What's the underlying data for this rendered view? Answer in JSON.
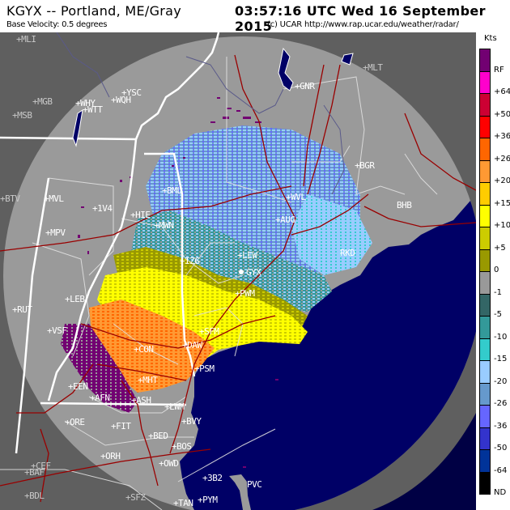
{
  "header": {
    "station": "KGYX -- Portland, ME/Gray",
    "product": "Base Velocity: 0.5 degrees",
    "timestamp": "03:57:16 UTC Wed 16 September 2015",
    "credit": "(c) UCAR  http://www.rap.ucar.edu/weather/radar/"
  },
  "legend": {
    "title": "Kts",
    "entries": [
      {
        "label": "RF",
        "color": "#720072"
      },
      {
        "label": "+64",
        "color": "#ff00cc"
      },
      {
        "label": "+50",
        "color": "#cc0033"
      },
      {
        "label": "+36",
        "color": "#ff0000"
      },
      {
        "label": "+26",
        "color": "#ff6600"
      },
      {
        "label": "+20",
        "color": "#ff9933"
      },
      {
        "label": "+15",
        "color": "#ffcc00"
      },
      {
        "label": "+10",
        "color": "#ffff00"
      },
      {
        "label": "+5",
        "color": "#cccc00"
      },
      {
        "label": "0",
        "color": "#999900"
      },
      {
        "label": "-1",
        "color": "#999999"
      },
      {
        "label": "-5",
        "color": "#336666"
      },
      {
        "label": "-10",
        "color": "#339999"
      },
      {
        "label": "-15",
        "color": "#33cccc"
      },
      {
        "label": "-20",
        "color": "#99ccff"
      },
      {
        "label": "-26",
        "color": "#6699cc"
      },
      {
        "label": "-36",
        "color": "#6666ff"
      },
      {
        "label": "-50",
        "color": "#3333cc"
      },
      {
        "label": "-64",
        "color": "#003399"
      },
      {
        "label": "ND",
        "color": "#000000"
      }
    ]
  },
  "map": {
    "colors": {
      "outside_range": "#5f5f5f",
      "inside_range": "#9a9a9a",
      "ocean": "#000066",
      "state_border": "#ffffff",
      "county_border": "#e6e6e6",
      "highway": "#990000",
      "river": "#5a5a8a"
    },
    "cities": [
      {
        "id": "MLI",
        "label": "+MLI",
        "dim": true
      },
      {
        "id": "MGB",
        "label": "+MGB",
        "dim": true
      },
      {
        "id": "MSB",
        "label": "+MSB",
        "dim": true
      },
      {
        "id": "YSC",
        "label": "+YSC"
      },
      {
        "id": "WQH",
        "label": "+WQH"
      },
      {
        "id": "WHY",
        "label": "+WHY"
      },
      {
        "id": "WTT",
        "label": "+WTT"
      },
      {
        "id": "GNR",
        "label": "+GNR"
      },
      {
        "id": "MLT",
        "label": "+MLT",
        "dim": true
      },
      {
        "id": "BGR",
        "label": "+BGR"
      },
      {
        "id": "BHB",
        "label": "BHB"
      },
      {
        "id": "BTV",
        "label": "+BTV"
      },
      {
        "id": "MVL",
        "label": "+MVL"
      },
      {
        "id": "1V4",
        "label": "+1V4"
      },
      {
        "id": "HIE",
        "label": "+HIE"
      },
      {
        "id": "BML",
        "label": "+BML"
      },
      {
        "id": "WVL",
        "label": "+WVL"
      },
      {
        "id": "AUG",
        "label": "+AUG"
      },
      {
        "id": "MWN",
        "label": "+MWN"
      },
      {
        "id": "MPV",
        "label": "+MPV"
      },
      {
        "id": "LEW",
        "label": "+LEW"
      },
      {
        "id": "GYX",
        "label": "GYX"
      },
      {
        "id": "PWM",
        "label": "+PWM"
      },
      {
        "id": "IZG",
        "label": "+IZG"
      },
      {
        "id": "RKD",
        "label": "RKD"
      },
      {
        "id": "LEB",
        "label": "+LEB"
      },
      {
        "id": "RUT",
        "label": "+RUT"
      },
      {
        "id": "VSF",
        "label": "+VSF"
      },
      {
        "id": "CON",
        "label": "+CON"
      },
      {
        "id": "SFM",
        "label": "+SFM"
      },
      {
        "id": "DAW",
        "label": "+DAW"
      },
      {
        "id": "PSM",
        "label": "+PSM"
      },
      {
        "id": "MHT",
        "label": "+MHT"
      },
      {
        "id": "EEN",
        "label": "+EEN"
      },
      {
        "id": "AFN",
        "label": "+AFN"
      },
      {
        "id": "ASH",
        "label": "+ASH"
      },
      {
        "id": "LWM",
        "label": "+LWM"
      },
      {
        "id": "ORE",
        "label": "+ORE"
      },
      {
        "id": "FIT",
        "label": "+FIT"
      },
      {
        "id": "BVY",
        "label": "+BVY"
      },
      {
        "id": "BED",
        "label": "+BED"
      },
      {
        "id": "BOS",
        "label": "+BOS"
      },
      {
        "id": "ORH",
        "label": "+ORH"
      },
      {
        "id": "OWD",
        "label": "+OWD"
      },
      {
        "id": "CEF",
        "label": "+CEF",
        "dim": true
      },
      {
        "id": "BAF",
        "label": "+BAF",
        "dim": true
      },
      {
        "id": "BDL",
        "label": "+BDL",
        "dim": true
      },
      {
        "id": "SFZ",
        "label": "+SFZ",
        "dim": true
      },
      {
        "id": "3B2",
        "label": "+3B2"
      },
      {
        "id": "PVC",
        "label": "PVC"
      },
      {
        "id": "TAN",
        "label": "+TAN"
      },
      {
        "id": "PYM",
        "label": "+PYM"
      },
      {
        "id": "IJD",
        "label": "IJD",
        "dim": true
      }
    ]
  }
}
